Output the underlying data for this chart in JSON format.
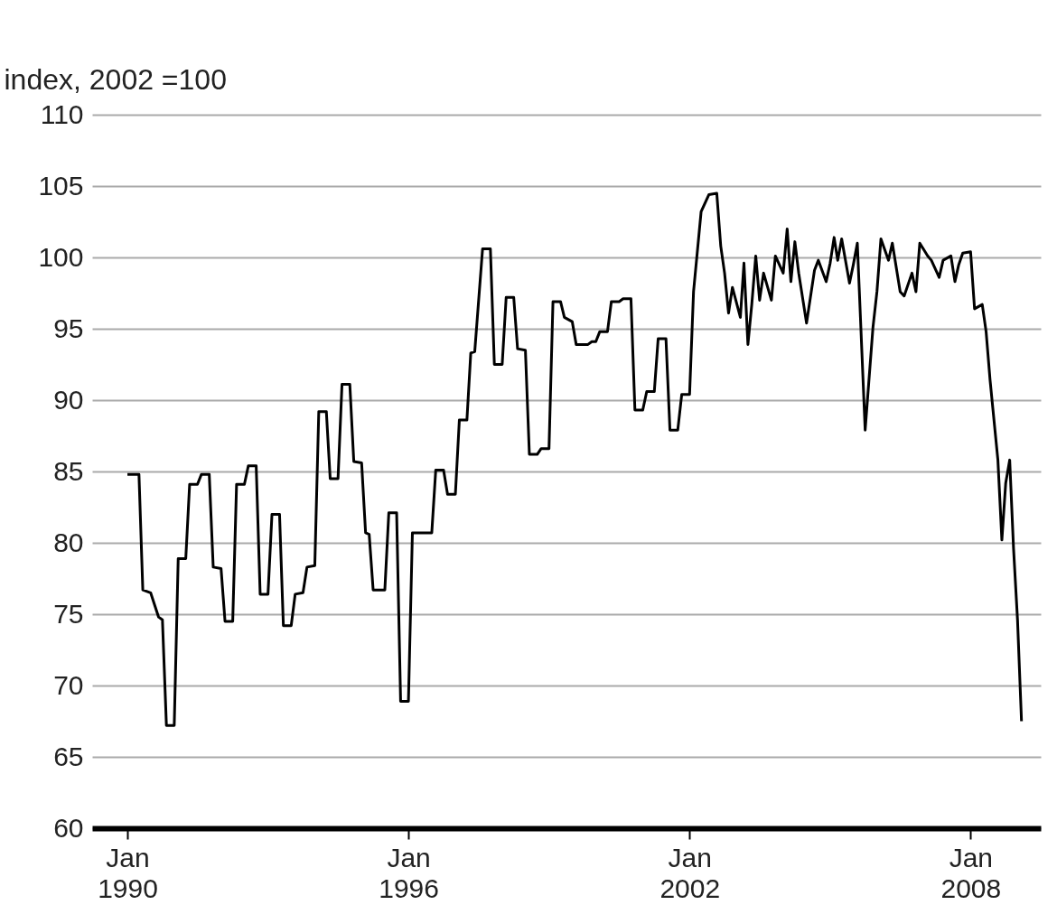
{
  "chart_data": {
    "type": "line",
    "ylabel": "index, 2002 =100",
    "xlim": [
      "1989-04",
      "2009-07"
    ],
    "ylim": [
      60,
      110
    ],
    "xticks": [
      {
        "value": "1990-01",
        "label": "Jan 1990"
      },
      {
        "value": "1996-01",
        "label": "Jan 1996"
      },
      {
        "value": "2002-01",
        "label": "Jan 2002"
      },
      {
        "value": "2008-01",
        "label": "Jan 2008"
      }
    ],
    "yticks": [
      60,
      65,
      70,
      75,
      80,
      85,
      90,
      95,
      100,
      105,
      110
    ],
    "grid": "y",
    "line_style": "solid",
    "marker": "none",
    "x": [
      "1990-01",
      "1990-04",
      "1990-05",
      "1990-07",
      "1990-09",
      "1990-10",
      "1990-11",
      "1991-01",
      "1991-02",
      "1991-04",
      "1991-05",
      "1991-07",
      "1991-08",
      "1991-10",
      "1991-11",
      "1992-01",
      "1992-02",
      "1992-04",
      "1992-05",
      "1992-07",
      "1992-08",
      "1992-10",
      "1992-11",
      "1993-01",
      "1993-02",
      "1993-04",
      "1993-05",
      "1993-07",
      "1993-08",
      "1993-10",
      "1993-11",
      "1994-01",
      "1994-02",
      "1994-04",
      "1994-05",
      "1994-07",
      "1994-08",
      "1994-10",
      "1994-11",
      "1995-01",
      "1995-02",
      "1995-03",
      "1995-04",
      "1995-07",
      "1995-08",
      "1995-10",
      "1995-11",
      "1996-01",
      "1996-02",
      "1996-07",
      "1996-08",
      "1996-10",
      "1996-11",
      "1997-01",
      "1997-02",
      "1997-04",
      "1997-05",
      "1997-06",
      "1997-08",
      "1997-10",
      "1997-11",
      "1998-01",
      "1998-02",
      "1998-04",
      "1998-05",
      "1998-07",
      "1998-08",
      "1998-10",
      "1998-11",
      "1999-01",
      "1999-02",
      "1999-04",
      "1999-05",
      "1999-07",
      "1999-08",
      "1999-11",
      "1999-12",
      "2000-01",
      "2000-02",
      "2000-04",
      "2000-05",
      "2000-07",
      "2000-08",
      "2000-10",
      "2000-11",
      "2001-01",
      "2001-02",
      "2001-04",
      "2001-05",
      "2001-07",
      "2001-08",
      "2001-10",
      "2001-11",
      "2002-01",
      "2002-02",
      "2002-04",
      "2002-06",
      "2002-08",
      "2002-09",
      "2002-10",
      "2002-11",
      "2002-12",
      "2003-02",
      "2003-03",
      "2003-04",
      "2003-05",
      "2003-06",
      "2003-07",
      "2003-08",
      "2003-10",
      "2003-11",
      "2004-01",
      "2004-02",
      "2004-03",
      "2004-04",
      "2004-05",
      "2004-07",
      "2004-09",
      "2004-10",
      "2004-12",
      "2005-01",
      "2005-02",
      "2005-03",
      "2005-04",
      "2005-06",
      "2005-07",
      "2005-08",
      "2005-10",
      "2005-12",
      "2006-01",
      "2006-02",
      "2006-04",
      "2006-05",
      "2006-07",
      "2006-08",
      "2006-10",
      "2006-11",
      "2006-12",
      "2007-02",
      "2007-03",
      "2007-05",
      "2007-06",
      "2007-08",
      "2007-09",
      "2007-10",
      "2007-11",
      "2008-01",
      "2008-02",
      "2008-04",
      "2008-05",
      "2008-06",
      "2008-08",
      "2008-09",
      "2008-10",
      "2008-11",
      "2008-12",
      "2009-01",
      "2009-02"
    ],
    "series": [
      {
        "color": "#000000",
        "values": [
          84.8,
          84.8,
          76.7,
          76.5,
          74.8,
          74.6,
          67.2,
          67.2,
          78.9,
          78.9,
          84.1,
          84.1,
          84.8,
          84.8,
          78.3,
          78.2,
          74.5,
          74.5,
          84.1,
          84.1,
          85.4,
          85.4,
          76.4,
          76.4,
          82.0,
          82.0,
          74.2,
          74.2,
          76.4,
          76.5,
          78.3,
          78.4,
          89.2,
          89.2,
          84.5,
          84.5,
          91.1,
          91.1,
          85.7,
          85.6,
          80.7,
          80.6,
          76.7,
          76.7,
          82.1,
          82.1,
          68.9,
          68.9,
          80.7,
          80.7,
          85.1,
          85.1,
          83.4,
          83.4,
          88.6,
          88.6,
          93.3,
          93.4,
          100.6,
          100.6,
          92.5,
          92.5,
          97.2,
          97.2,
          93.6,
          93.5,
          86.2,
          86.2,
          86.6,
          86.6,
          96.9,
          96.9,
          95.8,
          95.5,
          93.9,
          93.9,
          94.1,
          94.1,
          94.8,
          94.8,
          96.9,
          96.9,
          97.1,
          97.1,
          89.3,
          89.3,
          90.6,
          90.6,
          94.3,
          94.3,
          87.9,
          87.9,
          90.4,
          90.4,
          97.6,
          103.2,
          104.4,
          104.5,
          100.8,
          98.9,
          96.1,
          97.9,
          95.8,
          99.6,
          93.9,
          96.7,
          100.1,
          97.0,
          98.9,
          97.0,
          100.1,
          98.9,
          102.0,
          98.3,
          101.1,
          98.9,
          95.4,
          99.1,
          99.8,
          98.3,
          99.6,
          101.4,
          99.8,
          101.3,
          98.2,
          99.5,
          101.0,
          87.9,
          95.1,
          97.6,
          101.3,
          99.8,
          101.0,
          97.6,
          97.3,
          98.9,
          97.6,
          101.0,
          100.1,
          99.8,
          98.6,
          99.8,
          100.1,
          98.3,
          99.5,
          100.3,
          100.4,
          96.4,
          96.7,
          94.8,
          91.4,
          85.8,
          80.2,
          84.2,
          85.8,
          79.6,
          74.6,
          67.5
        ]
      }
    ]
  }
}
